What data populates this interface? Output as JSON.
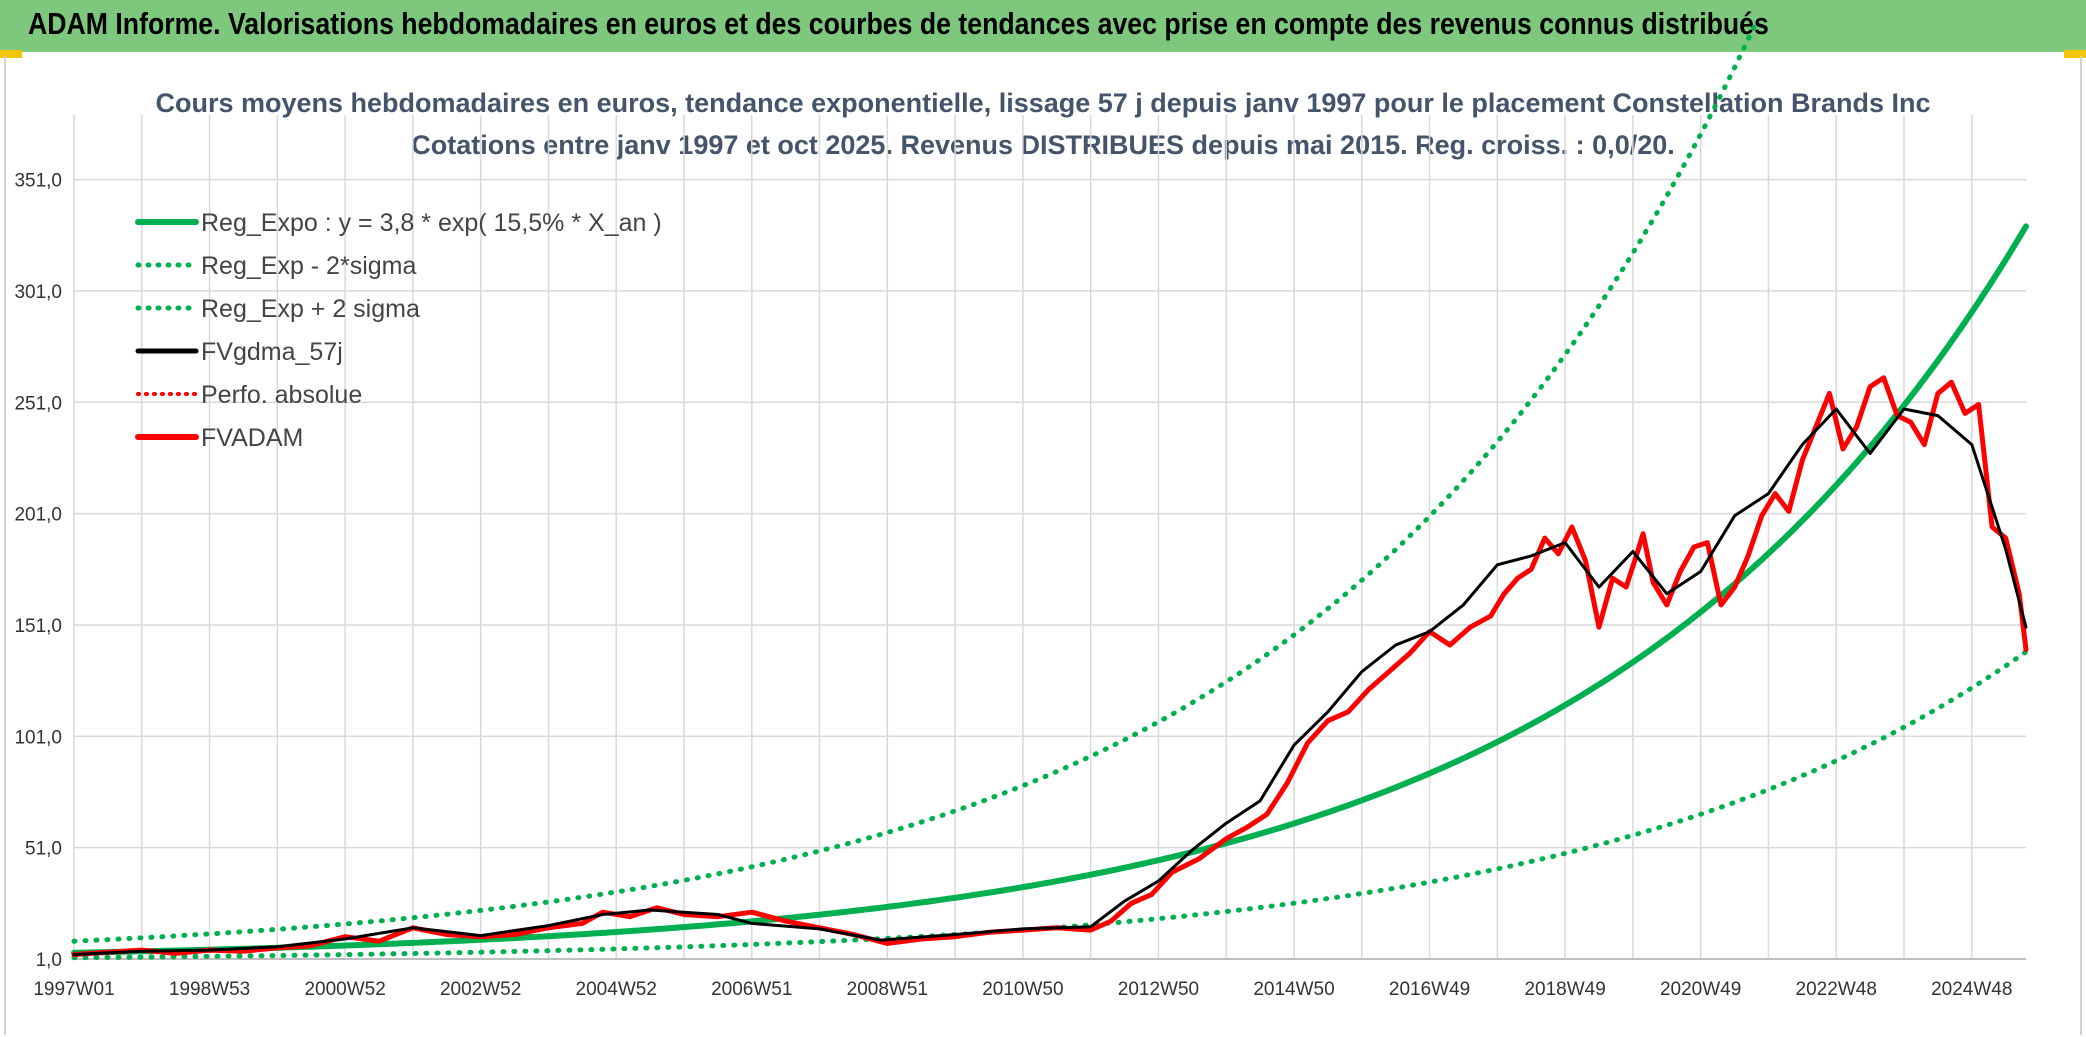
{
  "header": {
    "title": "ADAM Informe. Valorisations hebdomadaires en euros et des courbes de tendances avec prise en compte des revenus connus distribués"
  },
  "chart_data": {
    "type": "line",
    "title": "Cours moyens hebdomadaires en euros, tendance exponentielle, lissage 57 j depuis janv 1997 pour le placement Constellation Brands Inc",
    "subtitle": "Cotations entre janv 1997 et oct 2025. Revenus DISTRIBUES depuis mai 2015. Reg. croiss. : 0,0/20.",
    "xlabel": "",
    "ylabel": "",
    "grid": true,
    "legend_position": "top-left",
    "x_range": [
      1997.0,
      2025.8
    ],
    "ylim": [
      1,
      380
    ],
    "y_ticks": [
      "1,0",
      "51,0",
      "101,0",
      "151,0",
      "201,0",
      "251,0",
      "301,0",
      "351,0"
    ],
    "x_tick_labels": [
      "1997W01",
      "1998W53",
      "2000W52",
      "2002W52",
      "2004W52",
      "2006W51",
      "2008W51",
      "2010W50",
      "2012W50",
      "2014W50",
      "2016W49",
      "2018W49",
      "2020W49",
      "2022W48",
      "2024W48"
    ],
    "colors": {
      "regression": "#00b050",
      "band": "#00b050",
      "smooth": "#000000",
      "perfo": "#ff0000",
      "adam": "#ff0000",
      "title": "#44546a"
    },
    "legend": [
      {
        "label": "Reg_Expo : y = 3,8 * exp( 15,5% *  X_an )",
        "style": "solid-green"
      },
      {
        "label": "Reg_Exp - 2*sigma",
        "style": "dotted-green"
      },
      {
        "label": "Reg_Exp + 2 sigma",
        "style": "dotted-green"
      },
      {
        "label": "FVgdma_57j",
        "style": "solid-black"
      },
      {
        "label": "Perfo. absolue",
        "style": "dotted-red"
      },
      {
        "label": "FVADAM",
        "style": "solid-red"
      }
    ],
    "series": [
      {
        "name": "Reg_Expo",
        "formula": "y = 3.8 * exp(0.155 * (t - 1997))",
        "x": [
          1997,
          2000,
          2003,
          2006,
          2009,
          2012,
          2015,
          2018,
          2021,
          2024,
          2025.8
        ],
        "values": [
          3.8,
          6.0,
          9.6,
          15.2,
          24.2,
          38.4,
          61.0,
          97.0,
          154.1,
          245.0,
          338.0
        ]
      },
      {
        "name": "Reg_Exp - 2*sigma",
        "x": [
          1997,
          2000,
          2003,
          2006,
          2009,
          2012,
          2015,
          2018,
          2021,
          2024,
          2025.8
        ],
        "values": [
          1.6,
          2.6,
          4.1,
          6.5,
          10.3,
          16.3,
          26.0,
          41.3,
          65.5,
          104.0,
          133.0
        ]
      },
      {
        "name": "Reg_Exp + 2 sigma",
        "x": [
          1997,
          2000,
          2003,
          2006,
          2009,
          2012,
          2015,
          2018,
          2021,
          2021.8
        ],
        "values": [
          9.0,
          14.3,
          22.7,
          36.1,
          57.3,
          91.0,
          144.5,
          229.5,
          364.5,
          373.0
        ]
      },
      {
        "name": "FVgdma_57j",
        "x": [
          1997.0,
          1998.0,
          1999.0,
          2000.0,
          2001.0,
          2002.0,
          2003.0,
          2004.0,
          2004.8,
          2005.5,
          2006.5,
          2007.0,
          2008.0,
          2008.9,
          2010.0,
          2011.0,
          2012.0,
          2012.5,
          2013.0,
          2013.5,
          2014.0,
          2014.5,
          2015.0,
          2015.5,
          2016.0,
          2016.5,
          2017.0,
          2017.5,
          2018.0,
          2018.5,
          2019.0,
          2019.5,
          2020.0,
          2020.5,
          2021.0,
          2021.5,
          2022.0,
          2022.5,
          2023.0,
          2023.5,
          2024.0,
          2024.5,
          2025.0,
          2025.5,
          2025.8
        ],
        "values": [
          3.0,
          4.5,
          5.0,
          6.5,
          10.0,
          15.0,
          11.5,
          16.0,
          21.0,
          23.0,
          21.0,
          17.0,
          14.5,
          9.5,
          12.0,
          14.5,
          15.5,
          27.0,
          36.0,
          50.0,
          62.0,
          72.0,
          97.0,
          112.0,
          130.0,
          142.0,
          148.0,
          160.0,
          178.0,
          182.0,
          188.0,
          168.0,
          184.0,
          165.0,
          175.0,
          200.0,
          210.0,
          232.0,
          248.0,
          228.0,
          248.0,
          245.0,
          232.0,
          185.0,
          150.0
        ]
      },
      {
        "name": "Perfo. absolue",
        "x": [],
        "values": []
      },
      {
        "name": "FVADAM",
        "x": [
          1997.0,
          1997.5,
          1998.0,
          1998.5,
          1999.0,
          1999.5,
          2000.0,
          2000.5,
          2001.0,
          2001.5,
          2002.0,
          2002.5,
          2003.0,
          2003.5,
          2004.0,
          2004.5,
          2004.8,
          2005.2,
          2005.6,
          2006.0,
          2006.5,
          2007.0,
          2007.5,
          2008.0,
          2008.5,
          2009.0,
          2009.5,
          2010.0,
          2010.5,
          2011.0,
          2011.5,
          2012.0,
          2012.3,
          2012.6,
          2012.9,
          2013.2,
          2013.6,
          2014.0,
          2014.3,
          2014.6,
          2014.9,
          2015.2,
          2015.5,
          2015.8,
          2016.1,
          2016.4,
          2016.7,
          2017.0,
          2017.3,
          2017.6,
          2017.9,
          2018.1,
          2018.3,
          2018.5,
          2018.7,
          2018.9,
          2019.1,
          2019.3,
          2019.5,
          2019.7,
          2019.9,
          2020.05,
          2020.15,
          2020.3,
          2020.5,
          2020.7,
          2020.9,
          2021.1,
          2021.3,
          2021.5,
          2021.7,
          2021.9,
          2022.1,
          2022.3,
          2022.5,
          2022.7,
          2022.9,
          2023.1,
          2023.3,
          2023.5,
          2023.7,
          2023.9,
          2024.1,
          2024.3,
          2024.5,
          2024.7,
          2024.9,
          2025.1,
          2025.3,
          2025.5,
          2025.7,
          2025.8
        ],
        "values": [
          3.0,
          4.0,
          5.0,
          3.5,
          5.0,
          4.5,
          6.0,
          7.0,
          11.0,
          9.0,
          15.0,
          12.0,
          11.0,
          12.0,
          15.0,
          17.0,
          22.0,
          20.0,
          24.0,
          21.0,
          20.0,
          22.0,
          18.0,
          15.0,
          12.0,
          8.0,
          10.0,
          11.0,
          13.0,
          14.0,
          15.0,
          14.0,
          18.0,
          26.0,
          30.0,
          40.0,
          46.0,
          55.0,
          60.0,
          66.0,
          80.0,
          98.0,
          108.0,
          112.0,
          122.0,
          130.0,
          138.0,
          148.0,
          142.0,
          150.0,
          155.0,
          165.0,
          172.0,
          176.0,
          190.0,
          183.0,
          195.0,
          180.0,
          150.0,
          172.0,
          168.0,
          182.0,
          192.0,
          170.0,
          160.0,
          175.0,
          186.0,
          188.0,
          160.0,
          168.0,
          182.0,
          200.0,
          210.0,
          202.0,
          225.0,
          240.0,
          255.0,
          230.0,
          240.0,
          258.0,
          262.0,
          245.0,
          242.0,
          232.0,
          255.0,
          260.0,
          246.0,
          250.0,
          195.0,
          190.0,
          165.0,
          140.0
        ]
      }
    ]
  }
}
